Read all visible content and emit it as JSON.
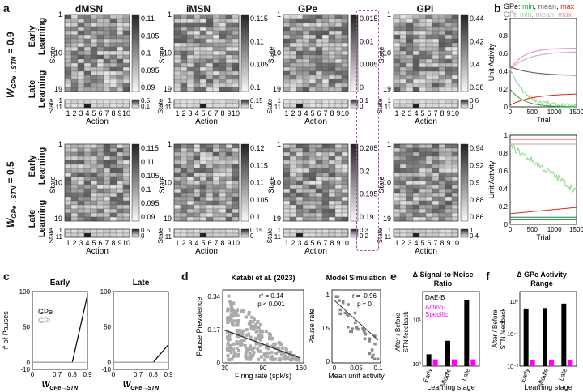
{
  "panels": {
    "a": "a",
    "b": "b",
    "c": "c",
    "d": "d",
    "e": "e",
    "f": "f"
  },
  "heatmaps": {
    "columns": [
      "dMSN",
      "iMSN",
      "GPe",
      "GPi"
    ],
    "row_w09": "W",
    "row_w09_sub": "GPe→STN",
    "row_w09_val": "= 0.9",
    "row_w05": "W",
    "row_w05_sub": "GPe→STN",
    "row_w05_val": "= 0.5",
    "early_1": "Early",
    "early_2": "Learning",
    "late_1": "Late",
    "late_2": "Learning",
    "state_label": "State",
    "action_label": "Action",
    "state_ticks_early": [
      "1",
      "10",
      "19"
    ],
    "state_ticks_late": [
      "1",
      "11"
    ],
    "action_ticks": [
      "1",
      "2",
      "3",
      "4",
      "5",
      "6",
      "7",
      "8",
      "9",
      "10"
    ],
    "cbar_top": [
      [
        "0.11",
        "0.105",
        "0.1",
        "0.095",
        "0.09"
      ],
      [
        "0.115",
        "0.11",
        "0.105",
        "0.1"
      ],
      [
        "0.015",
        "0.01",
        "0.005",
        "0"
      ],
      [
        "0.44",
        "0.42",
        "0.4",
        "0.38"
      ]
    ],
    "cbar_top_late": [
      [
        "0.5",
        "0.1"
      ],
      [
        "0.15",
        "0"
      ],
      [
        "0.1",
        "0"
      ],
      [
        "0.6",
        "0"
      ]
    ],
    "cbar_bot": [
      [
        "0.115",
        "0.11",
        "0.105",
        "0.1",
        "0.095",
        "0.09"
      ],
      [
        "0.12",
        "0.115",
        "0.11",
        "0.105",
        "0.1"
      ],
      [
        "0.205",
        "0.2",
        "0.195",
        "0.19"
      ],
      [
        "0.94",
        "0.92",
        "0.9",
        "0.88",
        "0.86"
      ]
    ],
    "cbar_bot_late": [
      [
        "0.5",
        "0"
      ],
      [
        "0.15",
        "0"
      ],
      [
        "0.3",
        "0.2"
      ],
      [
        "1",
        "0.4"
      ]
    ]
  },
  "panel_b": {
    "legend_gpe_prefix": "GPe: ",
    "legend_gpi_prefix": "GPi: ",
    "legend_min": "min",
    "legend_mean": "mean",
    "legend_max": "max",
    "sep": ", ",
    "ylabel": "Unit Activity",
    "xlabel": "Trial",
    "xticks": [
      "0",
      "500",
      "1000",
      "1500"
    ],
    "yticks": [
      "1",
      "0.8",
      "0.6",
      "0.4",
      "0.2",
      "0"
    ],
    "colors": {
      "min": "#22aa22",
      "mean": "#666666",
      "max": "#dd2222",
      "min_light": "#99dd99",
      "mean_light": "#bbbbbb",
      "max_light": "#f09999"
    }
  },
  "chart_data": [
    {
      "type": "line",
      "panel": "c-early",
      "title": "Early",
      "xlabel": "W GPe→STN",
      "ylabel": "# of Pauses",
      "xlim": [
        0.0,
        0.9
      ],
      "ylim": [
        -10,
        100
      ],
      "x": [
        0,
        0.1,
        0.2,
        0.3,
        0.4,
        0.5,
        0.6,
        0.7,
        0.8,
        0.9
      ],
      "series": [
        {
          "name": "GPe",
          "values": [
            0,
            0,
            0,
            0,
            0,
            0,
            0,
            0,
            0,
            95
          ]
        },
        {
          "name": "GPi",
          "values": [
            0,
            0,
            0,
            0,
            0,
            0,
            0,
            0,
            0,
            0
          ]
        }
      ]
    },
    {
      "type": "line",
      "panel": "c-late",
      "title": "Late",
      "xlabel": "W GPe→STN",
      "xlim": [
        0.0,
        0.9
      ],
      "ylim": [
        -10,
        100
      ],
      "x": [
        0,
        0.1,
        0.2,
        0.3,
        0.4,
        0.5,
        0.6,
        0.7,
        0.8,
        0.9
      ],
      "series": [
        {
          "name": "GPe",
          "values": [
            0,
            0,
            0,
            0,
            0,
            0,
            0,
            0,
            0,
            25
          ]
        },
        {
          "name": "GPi",
          "values": [
            0,
            0,
            0,
            0,
            0,
            0,
            0,
            0,
            0,
            0
          ]
        }
      ]
    },
    {
      "type": "bar",
      "panel": "e",
      "title": "Δ Signal-to-Noise Ratio",
      "ylabel": "After / Before STN feedback",
      "xlabel": "Learning stage",
      "categories": [
        "Early",
        "Middle",
        "Late"
      ],
      "series": [
        {
          "name": "DAE-B",
          "values": [
            1.8,
            3.5,
            26
          ]
        },
        {
          "name": "Action-Specific",
          "values": [
            1.4,
            1.4,
            1.4
          ]
        }
      ]
    },
    {
      "type": "bar",
      "panel": "f",
      "title": "Δ GPe Activity Range",
      "ylabel": "After / Before STN feedback",
      "xlabel": "Learning stage",
      "categories": [
        "Early",
        "Middle",
        "Late"
      ],
      "series": [
        {
          "values": [
            0.6,
            0.62,
            0.85
          ]
        },
        {
          "values": [
            0.015,
            0.015,
            0.015
          ]
        }
      ]
    }
  ],
  "panel_c": {
    "ytick_early": [
      "100",
      "50",
      "0",
      "-10"
    ],
    "xticks": [
      "0",
      "0.7",
      "0.8",
      "0.9"
    ],
    "xlabel_w": "W",
    "xlabel_sub": "GPe→STN",
    "legend_gpe": "GPe",
    "legend_gpi": "GPi"
  },
  "panel_d": {
    "left_title": "Katabi et al. (2023)",
    "right_title": "Model Simulation",
    "left_ylabel": "Pause Prevalence",
    "left_xlabel": "Firing rate (spk/s)",
    "left_xticks": [
      "20",
      "90",
      "160"
    ],
    "left_yticks": [
      "0.34",
      "0.17",
      "0"
    ],
    "left_stats1": "r² = 0.14",
    "left_stats2": "p < 0.001",
    "right_ylabel": "Pause rate",
    "right_xlabel": "Mean unit activity",
    "right_xticks": [
      "0",
      "0.05",
      "0.1"
    ],
    "right_yticks": [
      "1",
      "0.5",
      "0"
    ],
    "right_stats1": "r = -0.96",
    "right_stats2": "p ≈ 0"
  },
  "panel_e": {
    "title1": "Δ Signal-to-Noise",
    "title2": "Ratio",
    "legend_dae": "DAE-B",
    "legend_as1": "Action-",
    "legend_as2": "Specific",
    "ylabel1": "After / Before",
    "ylabel2": "STN feedback",
    "xlabel": "Learning stage",
    "yticks": [
      "10¹",
      "10⁰"
    ],
    "cats": [
      "Early",
      "Middle",
      "Late"
    ],
    "colors": {
      "dae": "#000000",
      "as": "#ff00ff"
    }
  },
  "panel_f": {
    "title": "Δ GPe Activity",
    "title2": "Range",
    "ylabel1": "After / Before",
    "ylabel2": "STN feedback",
    "xlabel": "Learning stage",
    "yticks": [
      "10⁰",
      "10⁻¹",
      "10⁻²"
    ],
    "cats": [
      "Early",
      "Middle",
      "Late"
    ]
  }
}
